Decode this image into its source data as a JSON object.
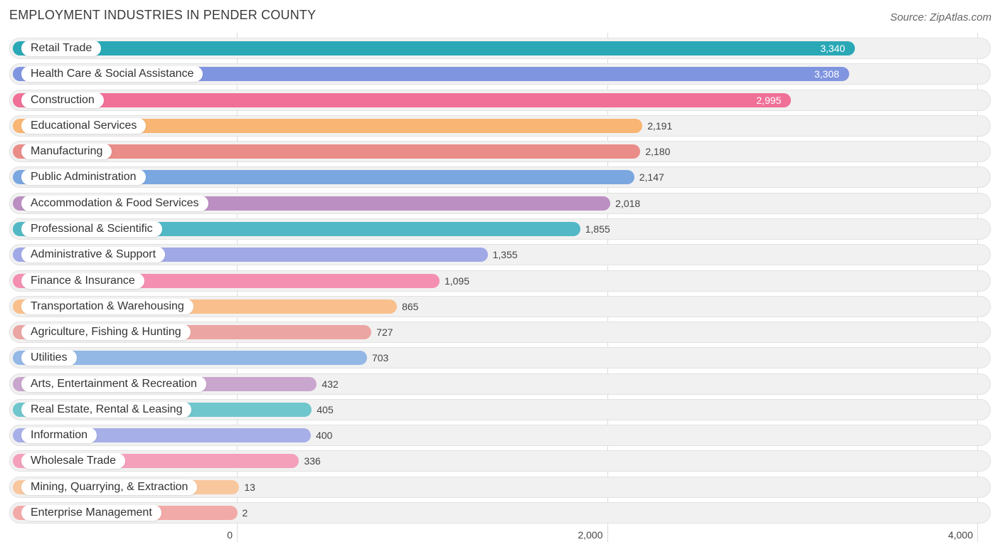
{
  "header": {
    "title": "EMPLOYMENT INDUSTRIES IN PENDER COUNTY",
    "source": "Source: ZipAtlas.com"
  },
  "chart_data": {
    "type": "bar",
    "orientation": "horizontal",
    "title": "EMPLOYMENT INDUSTRIES IN PENDER COUNTY",
    "xlabel": "",
    "ylabel": "",
    "xlim": [
      0,
      4000
    ],
    "ticks": [
      0,
      2000,
      4000
    ],
    "tick_labels": [
      "0",
      "2,000",
      "4,000"
    ],
    "grid": true,
    "categories": [
      "Retail Trade",
      "Health Care & Social Assistance",
      "Construction",
      "Educational Services",
      "Manufacturing",
      "Public Administration",
      "Accommodation & Food Services",
      "Professional & Scientific",
      "Administrative & Support",
      "Finance & Insurance",
      "Transportation & Warehousing",
      "Agriculture, Fishing & Hunting",
      "Utilities",
      "Arts, Entertainment & Recreation",
      "Real Estate, Rental & Leasing",
      "Information",
      "Wholesale Trade",
      "Mining, Quarrying, & Extraction",
      "Enterprise Management"
    ],
    "values": [
      3340,
      3308,
      2995,
      2191,
      2180,
      2147,
      2018,
      1855,
      1355,
      1095,
      865,
      727,
      703,
      432,
      405,
      400,
      336,
      13,
      2
    ],
    "value_labels": [
      "3,340",
      "3,308",
      "2,995",
      "2,191",
      "2,180",
      "2,147",
      "2,018",
      "1,855",
      "1,355",
      "1,095",
      "865",
      "727",
      "703",
      "432",
      "405",
      "400",
      "336",
      "13",
      "2"
    ],
    "colors": [
      "#2aa8b6",
      "#8095df",
      "#f07098",
      "#f9b573",
      "#ea8c88",
      "#7aa7e0",
      "#bb8fc1",
      "#52b8c5",
      "#a0a8e6",
      "#f48fb1",
      "#f9c08d",
      "#eba5a2",
      "#93b8e6",
      "#c9a6cd",
      "#6fc6cc",
      "#a6afe7",
      "#f4a0bb",
      "#f9c79e",
      "#f2aaa8"
    ]
  }
}
